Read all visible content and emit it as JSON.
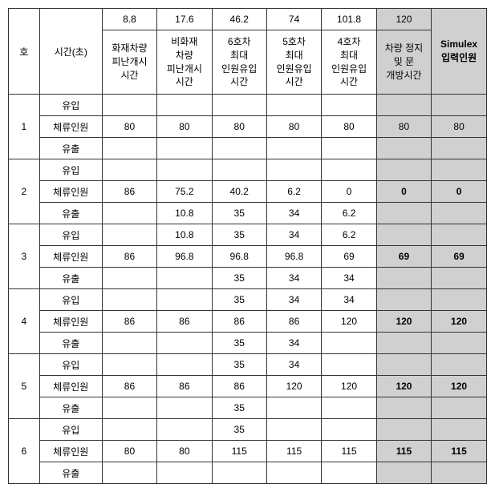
{
  "headers": {
    "ho": "호",
    "time": "시간(초)",
    "top_times": [
      "8.8",
      "17.6",
      "46.2",
      "74",
      "101.8",
      "120"
    ],
    "sub_headers": [
      "화재차량\n피난개시\n시간",
      "비화재\n차량\n피난개시\n시간",
      "6호차\n최대\n인원유입\n시간",
      "5호차\n최대\n인원유입\n시간",
      "4호차\n최대\n인원유입\n시간",
      "차량 정지\n및 문\n개방시간"
    ],
    "simulex": "Simulex\n입력인원"
  },
  "row_labels": {
    "inflow": "유입",
    "stay": "체류인원",
    "outflow": "유출"
  },
  "groups": [
    {
      "id": "1",
      "inflow": [
        "",
        "",
        "",
        "",
        "",
        "",
        ""
      ],
      "stay": [
        "80",
        "80",
        "80",
        "80",
        "80",
        "80",
        "80"
      ],
      "outflow": [
        "",
        "",
        "",
        "",
        "",
        "",
        ""
      ],
      "stay_bold_last": false
    },
    {
      "id": "2",
      "inflow": [
        "",
        "",
        "",
        "",
        "",
        "",
        ""
      ],
      "stay": [
        "86",
        "75.2",
        "40.2",
        "6.2",
        "0",
        "0",
        "0"
      ],
      "outflow": [
        "",
        "10.8",
        "35",
        "34",
        "6.2",
        "",
        ""
      ],
      "stay_bold_last": true
    },
    {
      "id": "3",
      "inflow": [
        "",
        "10.8",
        "35",
        "34",
        "6.2",
        "",
        ""
      ],
      "stay": [
        "86",
        "96.8",
        "96.8",
        "96.8",
        "69",
        "69",
        "69"
      ],
      "outflow": [
        "",
        "",
        "35",
        "34",
        "34",
        "",
        ""
      ],
      "stay_bold_last": true
    },
    {
      "id": "4",
      "inflow": [
        "",
        "",
        "35",
        "34",
        "34",
        "",
        ""
      ],
      "stay": [
        "86",
        "86",
        "86",
        "86",
        "120",
        "120",
        "120"
      ],
      "outflow": [
        "",
        "",
        "35",
        "34",
        "",
        "",
        ""
      ],
      "stay_bold_last": true
    },
    {
      "id": "5",
      "inflow": [
        "",
        "",
        "35",
        "34",
        "",
        "",
        ""
      ],
      "stay": [
        "86",
        "86",
        "86",
        "120",
        "120",
        "120",
        "120"
      ],
      "outflow": [
        "",
        "",
        "35",
        "",
        "",
        "",
        ""
      ],
      "stay_bold_last": true
    },
    {
      "id": "6",
      "inflow": [
        "",
        "",
        "35",
        "",
        "",
        "",
        ""
      ],
      "stay": [
        "80",
        "80",
        "115",
        "115",
        "115",
        "115",
        "115"
      ],
      "outflow": [
        "",
        "",
        "",
        "",
        "",
        "",
        ""
      ],
      "stay_bold_last": true
    }
  ]
}
